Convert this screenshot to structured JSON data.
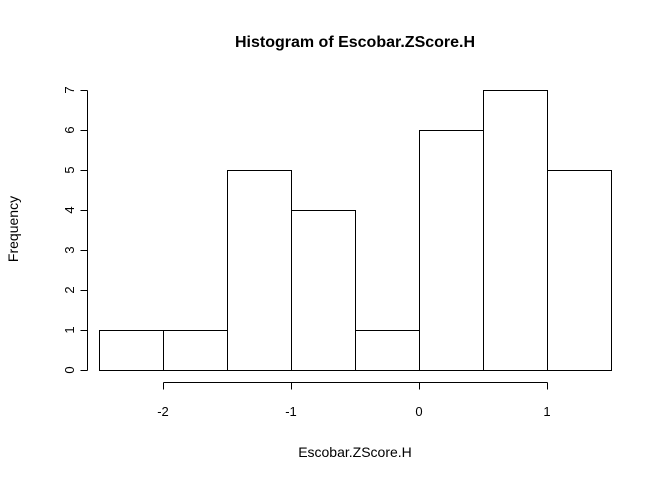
{
  "chart_data": {
    "type": "bar",
    "title": "Histogram of Escobar.ZScore.H",
    "xlabel": "Escobar.ZScore.H",
    "ylabel": "Frequency",
    "bins": [
      {
        "x0": -2.5,
        "x1": -2.0,
        "count": 1
      },
      {
        "x0": -2.0,
        "x1": -1.5,
        "count": 1
      },
      {
        "x0": -1.5,
        "x1": -1.0,
        "count": 5
      },
      {
        "x0": -1.0,
        "x1": -0.5,
        "count": 4
      },
      {
        "x0": -0.5,
        "x1": 0.0,
        "count": 1
      },
      {
        "x0": 0.0,
        "x1": 0.5,
        "count": 6
      },
      {
        "x0": 0.5,
        "x1": 1.0,
        "count": 7
      },
      {
        "x0": 1.0,
        "x1": 1.5,
        "count": 5
      }
    ],
    "x_ticks": [
      -2,
      -1,
      0,
      1
    ],
    "x_tick_labels": [
      "-2",
      "-1",
      "0",
      "1"
    ],
    "y_ticks": [
      0,
      1,
      2,
      3,
      4,
      5,
      6,
      7
    ],
    "y_tick_labels": [
      "0",
      "1",
      "2",
      "3",
      "4",
      "5",
      "6",
      "7"
    ],
    "xlim": [
      -2.5,
      1.5
    ],
    "ylim": [
      0,
      7
    ],
    "grid": false,
    "bar_fill": "#ffffff",
    "bar_stroke": "#000000"
  }
}
